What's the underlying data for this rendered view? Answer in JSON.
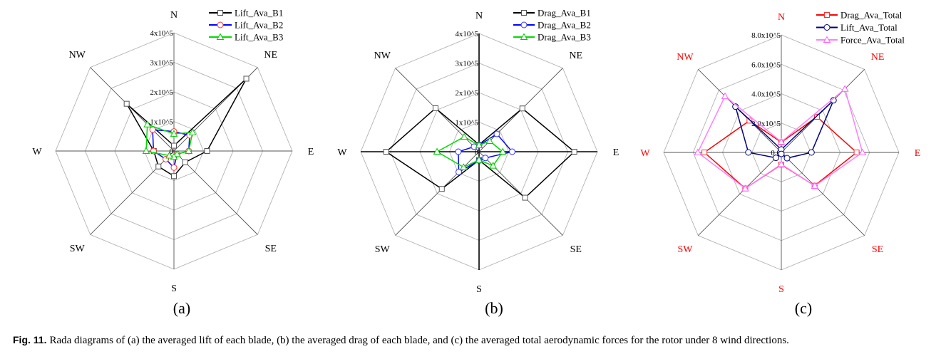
{
  "caption": {
    "fig_label": "Fig. 11.",
    "text": "Rada diagrams of (a) the averaged lift of each blade, (b) the averaged drag of each blade, and (c) the averaged total aerodynamic forces for the rotor under 8 wind directions."
  },
  "chart_data": [
    {
      "type": "radar",
      "panel": "(a)",
      "directions": [
        "N",
        "NE",
        "E",
        "SE",
        "S",
        "SW",
        "W",
        "NW"
      ],
      "direction_color": "#000000",
      "rmax": 4,
      "unit": "x10^5",
      "ticks": [
        0,
        1,
        2,
        3,
        4
      ],
      "tick_labels": [
        "0",
        "1x10^5",
        "2x10^5",
        "3x10^5",
        "4x10^5"
      ],
      "legend_placement": "top-right",
      "series": [
        {
          "name": "Lift_Ava_B1",
          "line": "#000000",
          "marker": "square",
          "marker_color": "#555555",
          "values": [
            0.18,
            3.46,
            1.12,
            0.54,
            0.85,
            0.74,
            0.68,
            2.26
          ]
        },
        {
          "name": "Lift_Ava_B2",
          "line": "#0000ff",
          "marker": "circle",
          "marker_color": "#ff3030",
          "values": [
            0.66,
            0.75,
            0.5,
            0.15,
            0.56,
            0.39,
            0.69,
            1.02
          ]
        },
        {
          "name": "Lift_Ava_B3",
          "line": "#00dd00",
          "marker": "triangle",
          "marker_color": "#00cc00",
          "values": [
            0.58,
            0.89,
            0.5,
            0.15,
            0.2,
            0.22,
            0.94,
            1.27
          ]
        }
      ]
    },
    {
      "type": "radar",
      "panel": "(b)",
      "directions": [
        "N",
        "NE",
        "E",
        "SE",
        "S",
        "SW",
        "W",
        "NW"
      ],
      "direction_color": "#000000",
      "rmax": 4,
      "unit": "x10^5",
      "ticks": [
        0,
        1,
        2,
        3,
        4
      ],
      "tick_labels": [
        "0",
        "1x10^5",
        "2x10^5",
        "3x10^5",
        "4x10^5"
      ],
      "legend_placement": "top-right",
      "series": [
        {
          "name": "Drag_Ava_B1",
          "line": "#000000",
          "marker": "square",
          "marker_color": "#555555",
          "values": [
            0.24,
            2.07,
            3.22,
            2.2,
            0.28,
            1.78,
            3.14,
            2.08
          ]
        },
        {
          "name": "Drag_Ava_B2",
          "line": "#0000ff",
          "marker": "circle",
          "marker_color": "#3030ff",
          "values": [
            0.22,
            0.85,
            1.12,
            0.3,
            0.3,
            0.97,
            0.7,
            0.24
          ]
        },
        {
          "name": "Drag_Ava_B3",
          "line": "#00dd00",
          "marker": "triangle",
          "marker_color": "#00cc00",
          "values": [
            0.22,
            0.51,
            0.8,
            0.67,
            0.28,
            0.74,
            1.42,
            0.71
          ]
        }
      ]
    },
    {
      "type": "radar",
      "panel": "(c)",
      "directions": [
        "N",
        "NE",
        "E",
        "SE",
        "S",
        "SW",
        "W",
        "NW"
      ],
      "direction_color": "#ff0000",
      "rmax": 8,
      "unit": "x10^5",
      "ticks": [
        0,
        2,
        4,
        6,
        8
      ],
      "tick_labels": [
        "0.0",
        "2.0x10^5",
        "4.0x10^5",
        "6.0x10^5",
        "8.0x10^5"
      ],
      "legend_placement": "top-right",
      "series": [
        {
          "name": "Drag_Ava_Total",
          "line": "#ff0000",
          "marker": "square",
          "marker_color": "#ff3030",
          "values": [
            0.69,
            3.43,
            5.12,
            3.2,
            0.83,
            3.47,
            5.23,
            3.06
          ]
        },
        {
          "name": "Lift_Ava_Total",
          "line": "#000080",
          "marker": "circle",
          "marker_color": "#000080",
          "values": [
            0.2,
            5.02,
            2.05,
            0.55,
            0.1,
            0.52,
            2.24,
            4.41
          ]
        },
        {
          "name": "Force_Ava_Total",
          "line": "#ff80ff",
          "marker": "triangle",
          "marker_color": "#ff60ff",
          "values": [
            0.72,
            6.12,
            5.52,
            3.22,
            0.8,
            3.47,
            5.68,
            5.41
          ]
        }
      ]
    }
  ]
}
